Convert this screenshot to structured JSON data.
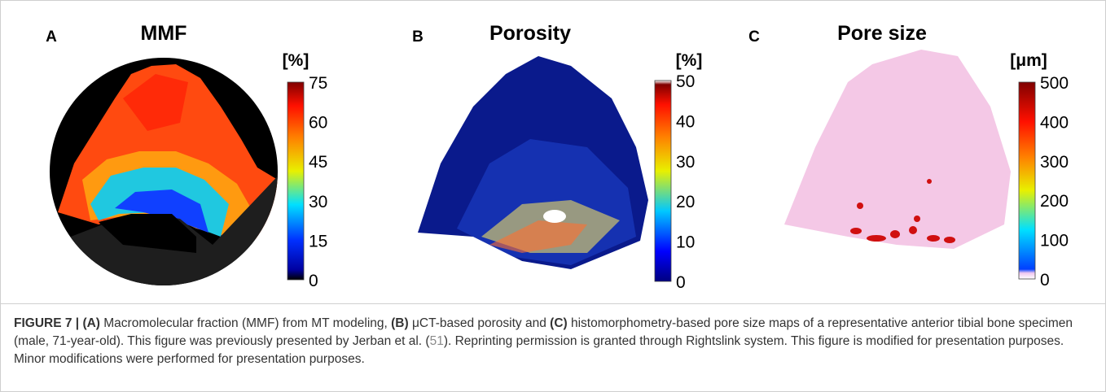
{
  "panels": [
    {
      "label": "A",
      "title": "MMF",
      "unit": "[%]",
      "ticks": [
        75,
        60,
        45,
        30,
        15,
        0
      ]
    },
    {
      "label": "B",
      "title": "Porosity",
      "unit": "[%]",
      "ticks": [
        50,
        40,
        30,
        20,
        10,
        0
      ]
    },
    {
      "label": "C",
      "title": "Pore size",
      "unit": "[μm]",
      "ticks": [
        500,
        400,
        300,
        200,
        100,
        0
      ]
    }
  ],
  "caption": [
    {
      "text": "FIGURE 7 | ",
      "bold": true
    },
    {
      "text": "(A)",
      "bold": true
    },
    {
      "text": " Macromolecular fraction (MMF) from MT modeling, ",
      "bold": false
    },
    {
      "text": "(B)",
      "bold": true
    },
    {
      "text": " μCT-based porosity and ",
      "bold": false
    },
    {
      "text": "(C)",
      "bold": true
    },
    {
      "text": " histomorphometry-based pore size maps of a representative anterior tibial bone specimen (male, 71-year-old). This figure was previously presented by Jerban et al. (",
      "bold": false
    },
    {
      "text": "51",
      "bold": false,
      "link": true
    },
    {
      "text": "). Reprinting permission is granted through Rightslink system. This figure is modified for presentation purposes. Minor modifications were performed for presentation purposes.",
      "bold": false
    }
  ]
}
